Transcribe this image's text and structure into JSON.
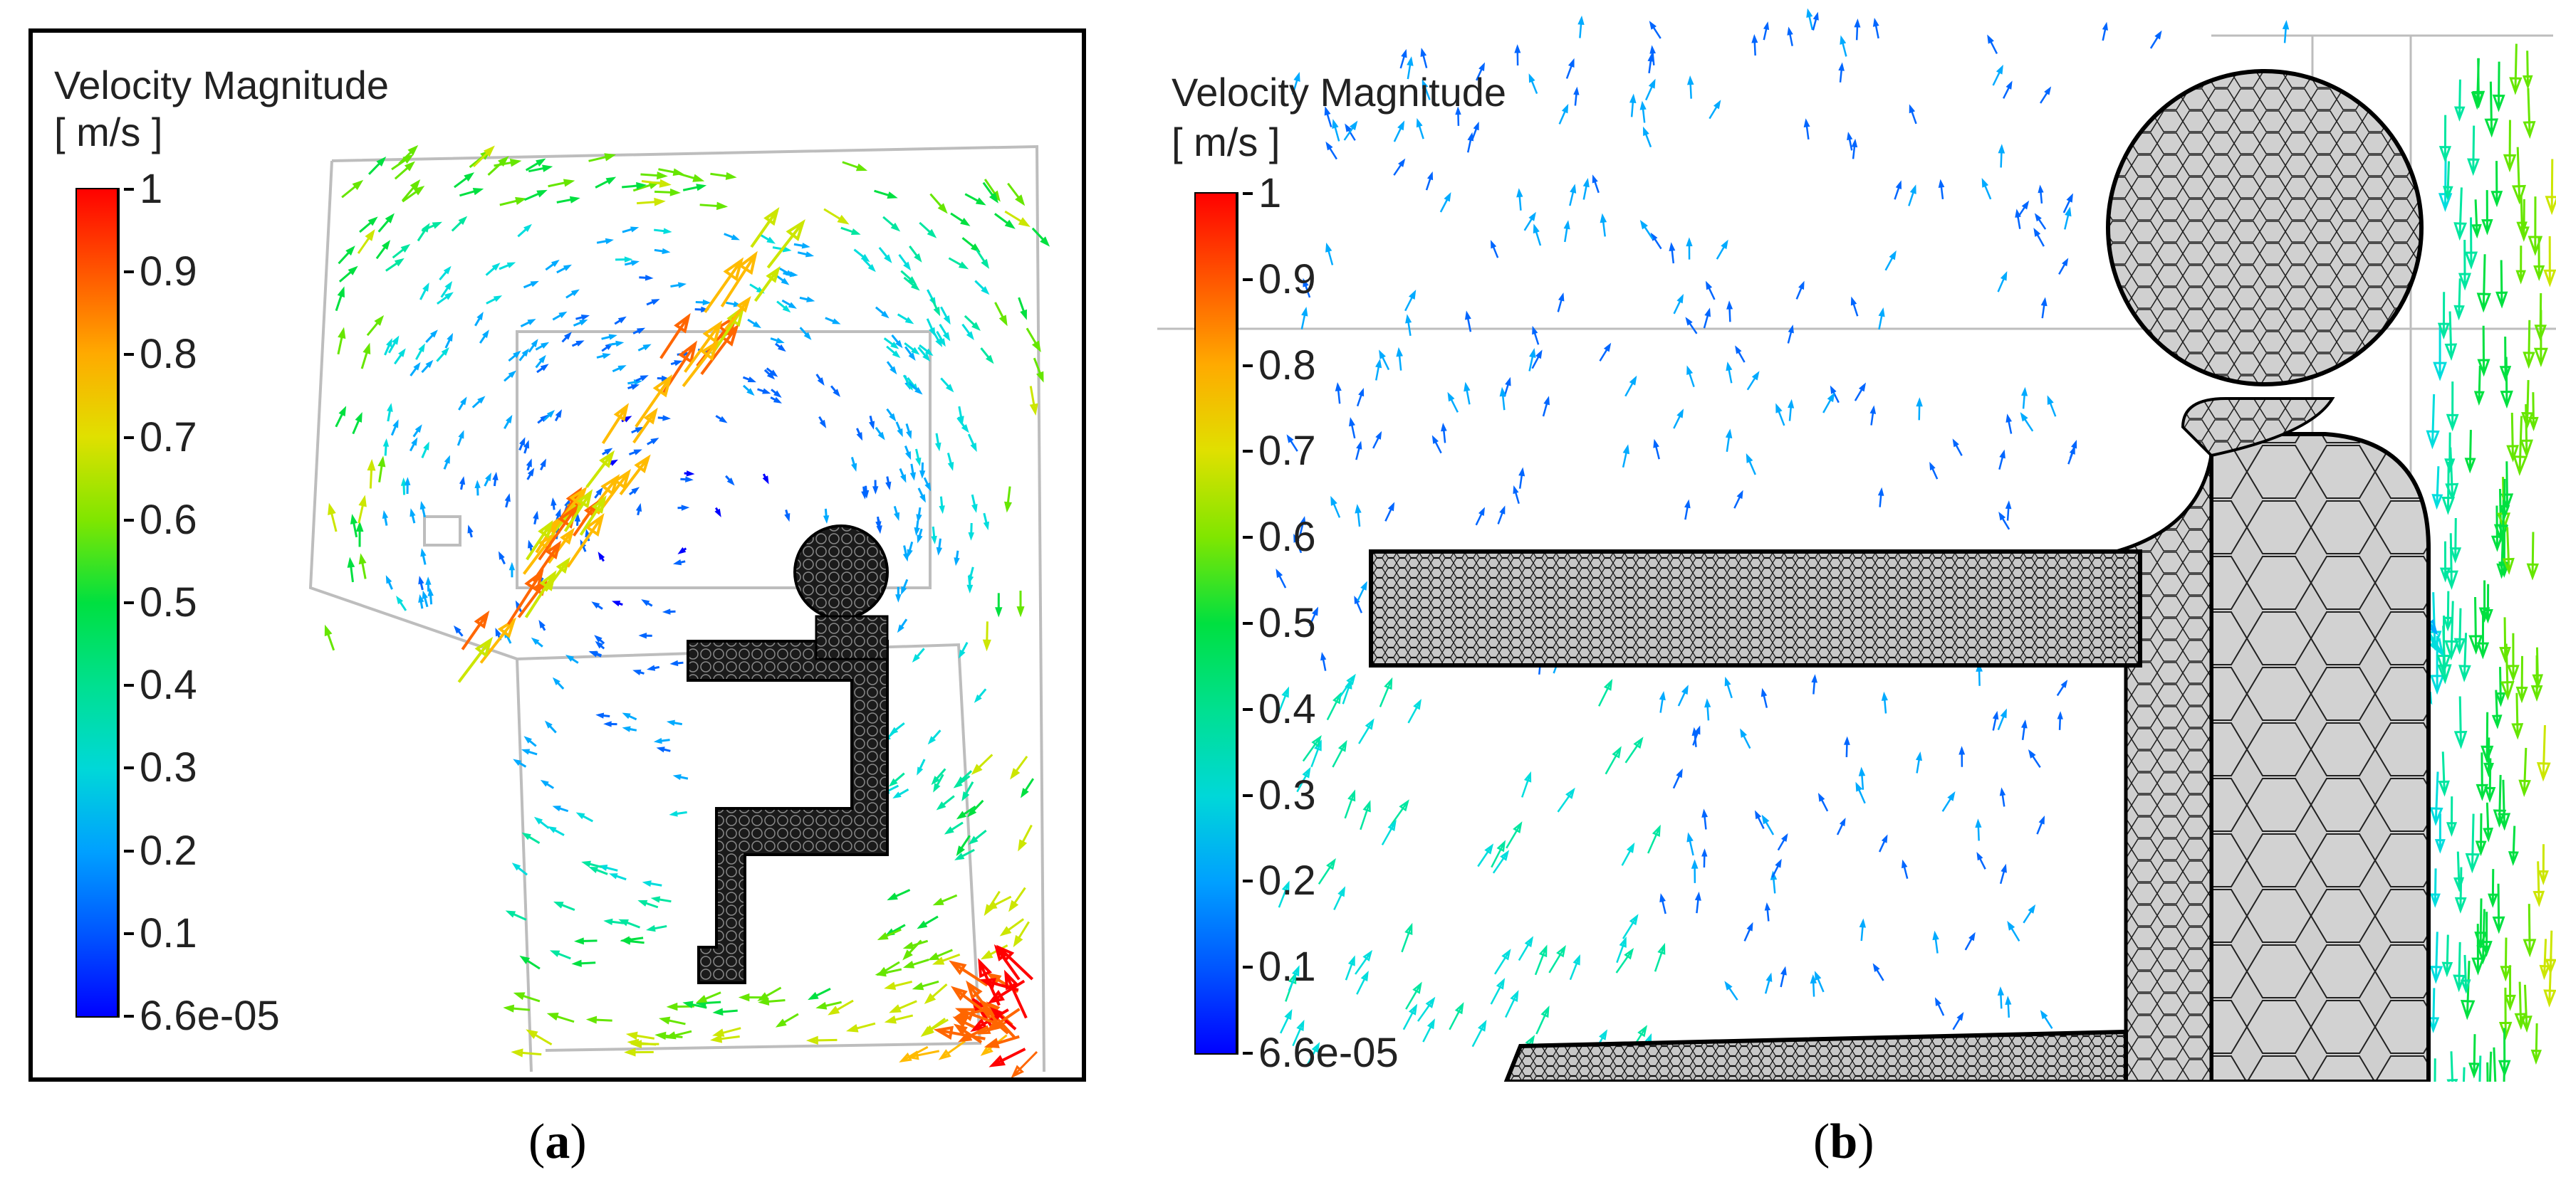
{
  "panels": [
    {
      "id": "a",
      "caption_open": "(",
      "caption_letter": "a",
      "caption_close": ")",
      "colorbar": {
        "title_line1": "Velocity Magnitude",
        "title_line2": "[ m/s ]",
        "ticks": [
          "1",
          "0.9",
          "0.8",
          "0.7",
          "0.6",
          "0.5",
          "0.4",
          "0.3",
          "0.2",
          "0.1",
          "6.6e-05"
        ]
      }
    },
    {
      "id": "b",
      "caption_open": "(",
      "caption_letter": "b",
      "caption_close": ")",
      "colorbar": {
        "title_line1": "Velocity Magnitude",
        "title_line2": "[ m/s ]",
        "ticks": [
          "1",
          "0.9",
          "0.8",
          "0.7",
          "0.6",
          "0.5",
          "0.4",
          "0.3",
          "0.2",
          "0.1",
          "6.6e-05"
        ]
      }
    }
  ],
  "colormap": [
    "#0000ff",
    "#0066ff",
    "#00aaff",
    "#00dddd",
    "#00e6a0",
    "#00e040",
    "#66e600",
    "#cce600",
    "#ffbb00",
    "#ff6600",
    "#ff0000"
  ]
}
